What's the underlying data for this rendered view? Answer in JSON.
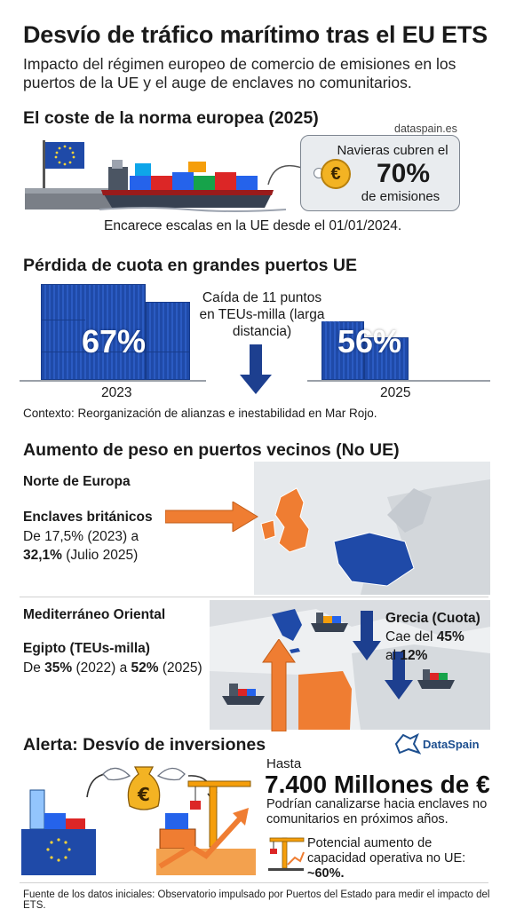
{
  "header": {
    "title": "Desvío de tráfico marítimo tras el EU ETS",
    "subtitle": "Impacto del régimen europeo de comercio de emisiones en los puertos de la UE y el auge de enclaves no comunitarios."
  },
  "section1": {
    "title": "El coste de la norma europea (2025)",
    "source_small": "dataspain.es",
    "tag_line1": "Navieras cubren el",
    "tag_pct": "70%",
    "tag_line2": "de emisiones",
    "caption": "Encarece escalas en la UE desde el 01/01/2024."
  },
  "section2": {
    "title": "Pérdida de cuota en grandes puertos UE",
    "pct_2023": "67%",
    "year_2023": "2023",
    "drop_text": "Caída de 11 puntos en TEUs-milla (larga distancia)",
    "pct_2025": "56%",
    "year_2025": "2025",
    "context": "Contexto: Reorganización de alianzas e inestabilidad en Mar Rojo."
  },
  "section3": {
    "title": "Aumento de peso en puertos vecinos (No UE)",
    "north_title": "Norte de Europa",
    "north_label": "Enclaves británicos",
    "north_from": "De 17,5% (2023) a",
    "north_to": "32,1%",
    "north_to_suffix": "(Julio 2025)",
    "med_title": "Mediterráneo Oriental",
    "egypt_label": "Egipto (TEUs-milla)",
    "egypt_prefix": "De ",
    "egypt_from": "35%",
    "egypt_mid": " (2022) a ",
    "egypt_to": "52%",
    "egypt_suffix": " (2025)",
    "greece_label": "Grecia (Cuota)",
    "greece_line1_prefix": "Cae del ",
    "greece_from": "45%",
    "greece_line2_prefix": "al ",
    "greece_to": "12%"
  },
  "section4": {
    "title": "Alerta: Desvío de inversiones",
    "brand": "DataSpain",
    "hasta": "Hasta",
    "amount": "7.400 Millones de €",
    "amount_desc": "Podrían canalizarse hacia enclaves no comunitarios en próximos años.",
    "capacity_text_prefix": "Potencial aumento de capacidad operativa no UE: ",
    "capacity_value": "~60%."
  },
  "footer": {
    "source": "Fuente de los datos iniciales: Observatorio impulsado por Puertos del Estado para medir el impacto del ETS."
  },
  "colors": {
    "eu_blue": "#1f4aa8",
    "orange": "#ef7d32",
    "dark_blue": "#1d3f8f",
    "gold": "#f3b323"
  },
  "icons": [
    "eu-flag-icon",
    "container-ship-icon",
    "euro-coin-icon",
    "down-arrow-icon",
    "right-arrow-icon",
    "up-arrow-icon",
    "flying-money-bag-icon",
    "crane-icon",
    "growth-arrow-icon",
    "port-building-icon"
  ]
}
